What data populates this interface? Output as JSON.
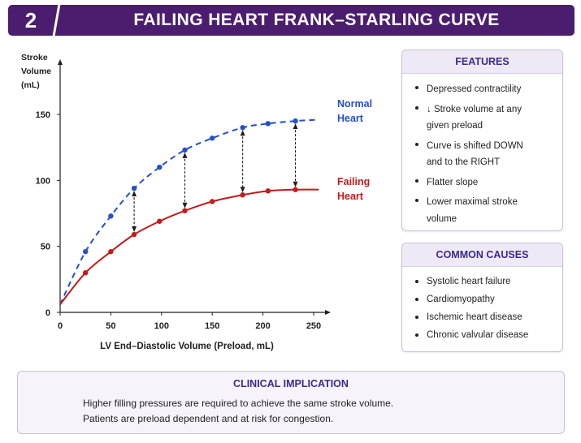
{
  "header": {
    "number": "2",
    "title": "FAILING HEART FRANK–STARLING CURVE"
  },
  "colors": {
    "header_bg": "#4b1d6e",
    "normal_curve": "#2450c8",
    "failing_curve": "#c41a1a",
    "panel_title": "#3a2a8c"
  },
  "chart_data": {
    "type": "line",
    "ylabel": [
      "Stroke",
      "Volume",
      "(mL)"
    ],
    "xlabel": "LV End–Diastolic Volume (Preload, mL)",
    "xlim": [
      0,
      250
    ],
    "ylim": [
      0,
      150
    ],
    "xticks": [
      0,
      50,
      100,
      150,
      200,
      250
    ],
    "yticks": [
      0,
      50,
      100,
      150
    ],
    "series": [
      {
        "name": "Normal Heart",
        "legend_lines": [
          "Normal",
          "Heart"
        ],
        "style": "dashed",
        "color": "#2450c8",
        "x": [
          0,
          25,
          50,
          73,
          98,
          123,
          150,
          180,
          205,
          232,
          255
        ],
        "y": [
          6,
          46,
          73,
          94,
          110,
          123,
          132,
          140,
          143,
          145,
          146
        ]
      },
      {
        "name": "Failing Heart",
        "legend_lines": [
          "Failing",
          "Heart"
        ],
        "style": "solid",
        "color": "#c41a1a",
        "x": [
          0,
          25,
          50,
          73,
          98,
          123,
          150,
          180,
          205,
          232,
          255
        ],
        "y": [
          6,
          30,
          46,
          59,
          69,
          77,
          84,
          89,
          92,
          93,
          93
        ]
      }
    ],
    "arrows_at_x": [
      73,
      123,
      180,
      232
    ]
  },
  "features": {
    "title": "FEATURES",
    "items": [
      [
        "Depressed contractility"
      ],
      [
        "↓ Stroke volume at any",
        "given preload"
      ],
      [
        "Curve is shifted DOWN",
        "and to the RIGHT"
      ],
      [
        "Flatter slope"
      ],
      [
        "Lower maximal stroke",
        "volume"
      ]
    ]
  },
  "causes": {
    "title": "COMMON CAUSES",
    "items": [
      "Systolic heart failure",
      "Cardiomyopathy",
      "Ischemic heart disease",
      "Chronic valvular disease"
    ]
  },
  "implication": {
    "title": "CLINICAL IMPLICATION",
    "lines": [
      "Higher filling pressures are required to achieve the same stroke volume.",
      "Patients are preload dependent and at risk for congestion."
    ]
  }
}
